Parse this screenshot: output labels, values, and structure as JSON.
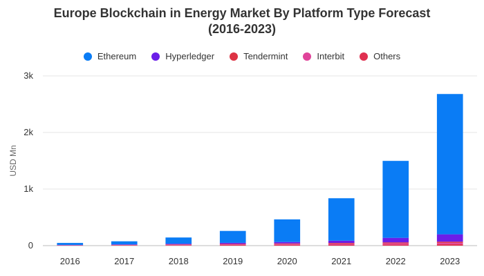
{
  "chart_data": {
    "type": "bar",
    "stacked": true,
    "title_lines": [
      "Europe Blockchain in Energy Market By Platform Type Forecast",
      "(2016-2023)"
    ],
    "xlabel": "",
    "ylabel": "USD Mn",
    "categories": [
      "2016",
      "2017",
      "2018",
      "2019",
      "2020",
      "2021",
      "2022",
      "2023"
    ],
    "ylim": [
      0,
      3000
    ],
    "yticks": [
      0,
      1000,
      2000,
      3000
    ],
    "ytick_labels": [
      "0",
      "1k",
      "2k",
      "3k"
    ],
    "grid": true,
    "legend_position": "top",
    "series": [
      {
        "name": "Others",
        "color": "#e03050",
        "values": [
          3,
          5,
          8,
          12,
          15,
          18,
          22,
          28
        ]
      },
      {
        "name": "Interbit",
        "color": "#e0449a",
        "values": [
          2,
          4,
          6,
          10,
          12,
          15,
          18,
          22
        ]
      },
      {
        "name": "Tendermint",
        "color": "#dd3344",
        "values": [
          3,
          5,
          8,
          10,
          12,
          15,
          18,
          20
        ]
      },
      {
        "name": "Hyperledger",
        "color": "#6b1ee8",
        "values": [
          5,
          8,
          12,
          18,
          25,
          40,
          80,
          130
        ]
      },
      {
        "name": "Ethereum",
        "color": "#0a7cf5",
        "values": [
          35,
          55,
          110,
          210,
          400,
          750,
          1360,
          2480
        ]
      }
    ],
    "legend_order": [
      "Ethereum",
      "Hyperledger",
      "Tendermint",
      "Interbit",
      "Others"
    ]
  }
}
